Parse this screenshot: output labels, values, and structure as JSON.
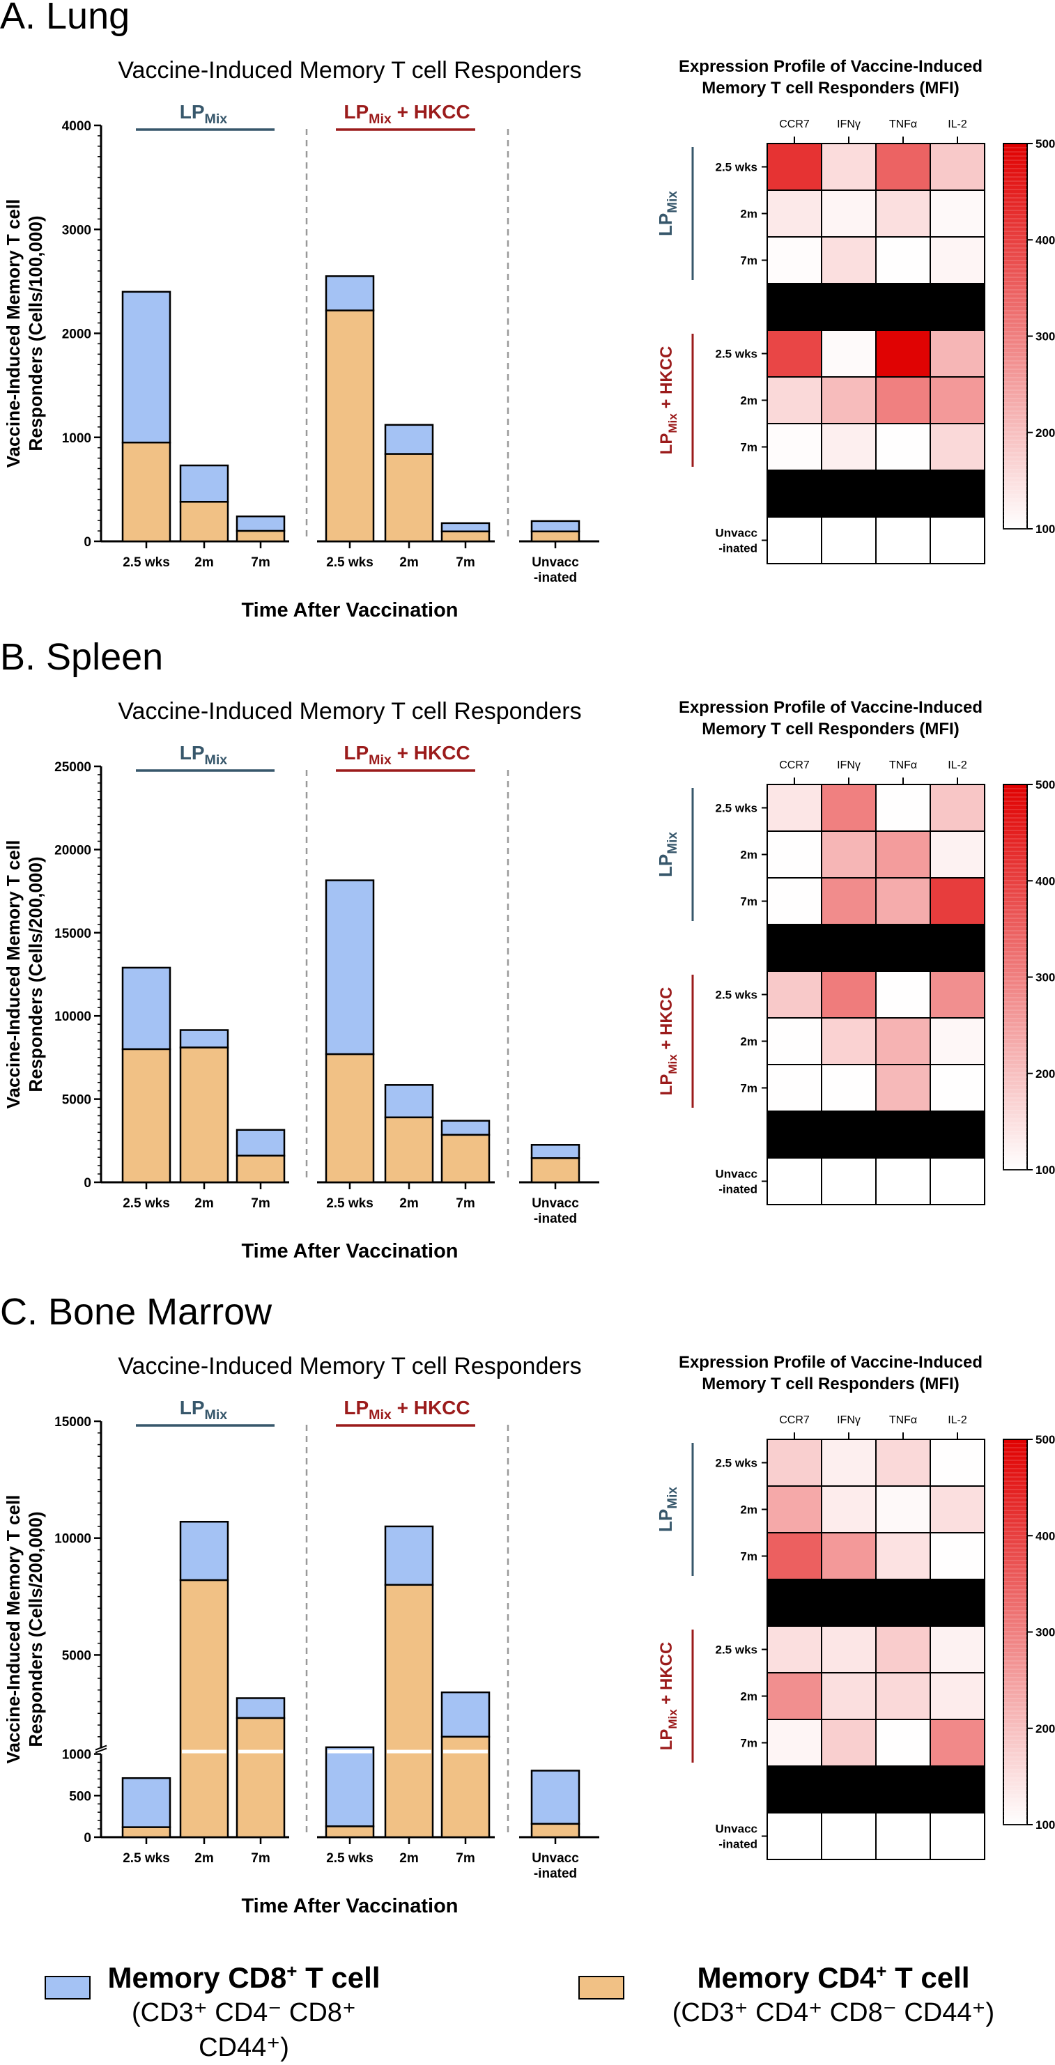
{
  "colors": {
    "cd8": "#a4c2f4",
    "cd4": "#f1c185",
    "lp_group": "#37576b",
    "hkcc_group": "#9b1b1b",
    "heat_low": "#ffffff",
    "heat_high": "#e00000",
    "blackout": "#000000"
  },
  "bar_title": "Vaccine-Induced Memory T cell Responders",
  "heatmap_title_line1": "Expression Profile of Vaccine-Induced",
  "heatmap_title_line2": "Memory T cell Responders (MFI)",
  "xaxis_label": "Time After Vaccination",
  "groups": {
    "lp_main": "LP",
    "lp_sub": "Mix",
    "hkcc_main": "LP",
    "hkcc_sub": "Mix",
    "hkcc_suffix": " + HKCC"
  },
  "categories": [
    "2.5 wks",
    "2m",
    "7m",
    "2.5 wks",
    "2m",
    "7m",
    "Unvacc\n-inated"
  ],
  "heat_columns": [
    "CCR7",
    "IFNγ",
    "TNFα",
    "IL-2"
  ],
  "heat_rows": [
    "2.5 wks",
    "2m",
    "7m",
    "",
    "2.5 wks",
    "2m",
    "7m",
    "",
    "Unvacc\n-inated"
  ],
  "colorbar": {
    "min": 100,
    "max": 500,
    "ticks": [
      100,
      200,
      300,
      400,
      500
    ]
  },
  "legend": {
    "cd8_title": "Memory CD8",
    "cd8_sup": "+",
    "cd8_title_end": " T cell",
    "cd8_markers": "(CD3⁺ CD4⁻ CD8⁺ CD44⁺)",
    "cd4_title": "Memory CD4",
    "cd4_sup": "+",
    "cd4_title_end": " T cell",
    "cd4_markers": "(CD3⁺ CD4⁺ CD8⁻ CD44⁺)"
  },
  "chart_data": [
    {
      "panel": "A. Lung",
      "type": "bar",
      "stacked": true,
      "title": "Vaccine-Induced Memory T cell Responders",
      "ylabel_line1": "Vaccine-Induced Memory T cell",
      "ylabel_line2": "Responders (Cells/100,000)",
      "xlabel": "Time After Vaccination",
      "ylim": [
        0,
        4000
      ],
      "yticks": [
        0,
        1000,
        2000,
        3000,
        4000
      ],
      "categories": [
        "2.5 wks",
        "2m",
        "7m",
        "2.5 wks",
        "2m",
        "7m",
        "Unvacc\n-inated"
      ],
      "series": [
        {
          "name": "Memory CD4+ T cell",
          "values": [
            950,
            380,
            100,
            2220,
            840,
            95,
            95
          ]
        },
        {
          "name": "Memory CD8+ T cell",
          "values": [
            1450,
            350,
            140,
            330,
            280,
            80,
            100
          ]
        }
      ],
      "heatmap": [
        [
          420,
          155,
          345,
          185
        ],
        [
          135,
          115,
          150,
          110
        ],
        [
          105,
          150,
          102,
          115
        ],
        null,
        [
          390,
          108,
          495,
          215
        ],
        [
          160,
          205,
          300,
          260
        ],
        [
          105,
          125,
          102,
          160
        ],
        null,
        [
          100,
          100,
          100,
          100
        ]
      ]
    },
    {
      "panel": "B. Spleen",
      "type": "bar",
      "stacked": true,
      "title": "Vaccine-Induced Memory T cell Responders",
      "ylabel_line1": "Vaccine-Induced Memory T cell",
      "ylabel_line2": "Responders (Cells/200,000)",
      "xlabel": "Time After Vaccination",
      "ylim": [
        0,
        25000
      ],
      "yticks": [
        0,
        5000,
        10000,
        15000,
        20000,
        25000
      ],
      "categories": [
        "2.5 wks",
        "2m",
        "7m",
        "2.5 wks",
        "2m",
        "7m",
        "Unvacc\n-inated"
      ],
      "series": [
        {
          "name": "Memory CD4+ T cell",
          "values": [
            8000,
            8100,
            1600,
            7700,
            3900,
            2850,
            1450
          ]
        },
        {
          "name": "Memory CD8+ T cell",
          "values": [
            4900,
            1050,
            1550,
            10450,
            1950,
            850,
            800
          ]
        }
      ],
      "heatmap": [
        [
          140,
          300,
          102,
          190
        ],
        [
          102,
          215,
          255,
          120
        ],
        [
          102,
          280,
          230,
          405
        ],
        null,
        [
          185,
          305,
          102,
          275
        ],
        [
          102,
          170,
          220,
          112
        ],
        [
          102,
          102,
          210,
          102
        ],
        null,
        [
          100,
          100,
          100,
          100
        ]
      ]
    },
    {
      "panel": "C. Bone Marrow",
      "type": "bar",
      "stacked": true,
      "title": "Vaccine-Induced Memory T cell Responders",
      "ylabel_line1": "Vaccine-Induced Memory T cell",
      "ylabel_line2": "Responders (Cells/200,000)",
      "xlabel": "Time After Vaccination",
      "ylim": [
        0,
        15000
      ],
      "ybreak": 1000,
      "yticks": [
        0,
        500,
        1000,
        5000,
        10000,
        15000
      ],
      "categories": [
        "2.5 wks",
        "2m",
        "7m",
        "2.5 wks",
        "2m",
        "7m",
        "Unvacc\n-inated"
      ],
      "series": [
        {
          "name": "Memory CD4+ T cell",
          "values": [
            120,
            8200,
            2300,
            130,
            8000,
            1500,
            160
          ]
        },
        {
          "name": "Memory CD8+ T cell",
          "values": [
            590,
            2500,
            850,
            920,
            2500,
            1900,
            640
          ]
        }
      ],
      "heatmap": [
        [
          175,
          125,
          160,
          102
        ],
        [
          235,
          130,
          110,
          150
        ],
        [
          350,
          260,
          145,
          102
        ],
        null,
        [
          150,
          140,
          180,
          120
        ],
        [
          275,
          150,
          160,
          130
        ],
        [
          115,
          175,
          102,
          285
        ],
        null,
        [
          100,
          100,
          100,
          100
        ]
      ]
    }
  ]
}
